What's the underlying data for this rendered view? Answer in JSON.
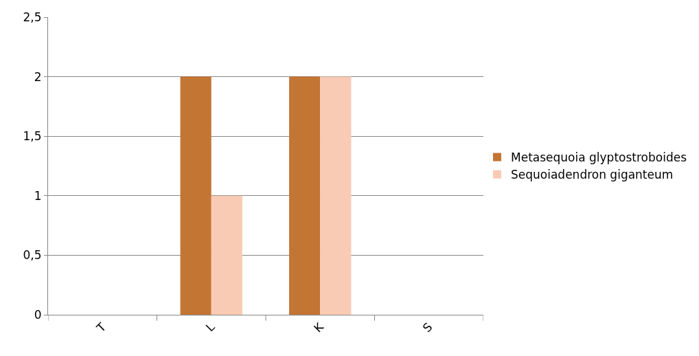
{
  "chart_data": {
    "type": "bar",
    "categories": [
      "T",
      "L",
      "K",
      "S"
    ],
    "series": [
      {
        "name": "Metasequoia glyptostroboides",
        "color": "#c37534",
        "values": [
          0,
          2,
          2,
          0
        ]
      },
      {
        "name": "Sequoiadendron giganteum",
        "color": "#f9cbb4",
        "values": [
          0,
          1,
          2,
          0
        ]
      }
    ],
    "ylim": [
      0,
      2.5
    ],
    "yticks": [
      0,
      {
        "value": 0.5,
        "label": "0,5"
      },
      1,
      {
        "value": 1.5,
        "label": "1,5"
      },
      2,
      {
        "value": 2.5,
        "label": "2,5"
      }
    ],
    "grid": "y",
    "legend": "right"
  }
}
